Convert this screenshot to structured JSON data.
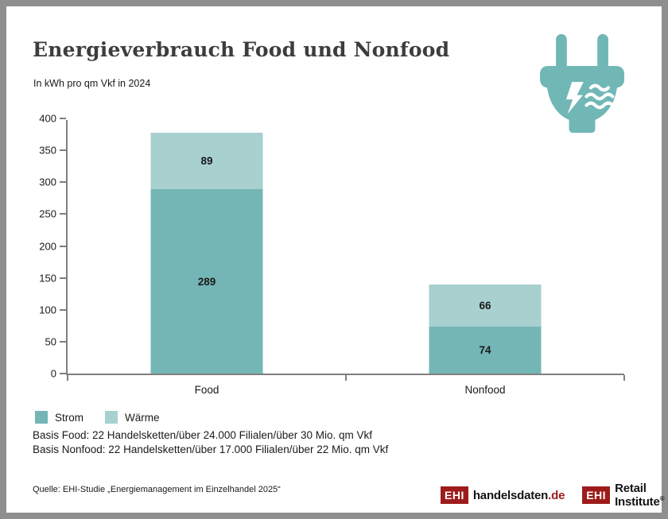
{
  "header": {},
  "chart_data": {
    "type": "bar",
    "stacked": true,
    "title": "Energieverbrauch Food und Nonfood",
    "subtitle": "In kWh pro qm Vkf in 2024",
    "categories": [
      "Food",
      "Nonfood"
    ],
    "series": [
      {
        "name": "Strom",
        "values": [
          289,
          74
        ],
        "color": "#74b6b5"
      },
      {
        "name": "Wärme",
        "values": [
          89,
          66
        ],
        "color": "#a7d0cf"
      }
    ],
    "totals": [
      378,
      140
    ],
    "xlabel": "",
    "ylabel": "",
    "ylim": [
      0,
      400
    ],
    "yticks": [
      0,
      50,
      100,
      150,
      200,
      250,
      300,
      350,
      400
    ],
    "grid": false,
    "legend_position": "bottom-left"
  },
  "notes": {
    "basis_food": "Basis Food: 22 Handelsketten/über 24.000 Filialen/über 30 Mio. qm Vkf",
    "basis_nonfood": "Basis Nonfood: 22 Handelsketten/über 17.000 Filialen/über 22 Mio. qm Vkf"
  },
  "footer": {
    "source": "Quelle: EHI-Studie „Energiemanagement im Einzelhandel 2025“"
  },
  "logos": {
    "handelsdaten": {
      "badge": "EHI",
      "name": "handelsdaten",
      "tld": ".de"
    },
    "retail": {
      "badge": "EHI",
      "name": "Retail Institute",
      "registered": "®"
    }
  },
  "icons": {
    "plug_icon": "power plug with lightning bolt and heat waves"
  },
  "colors": {
    "strom": "#74b6b5",
    "waerme": "#a7d0cf",
    "icon_teal": "#70b7b6",
    "logo_red": "#9e1b1b",
    "axis": "#7f7f7f",
    "frame": "#8f8f8f",
    "title": "#3d3d3d",
    "text": "#1a1a1a"
  }
}
